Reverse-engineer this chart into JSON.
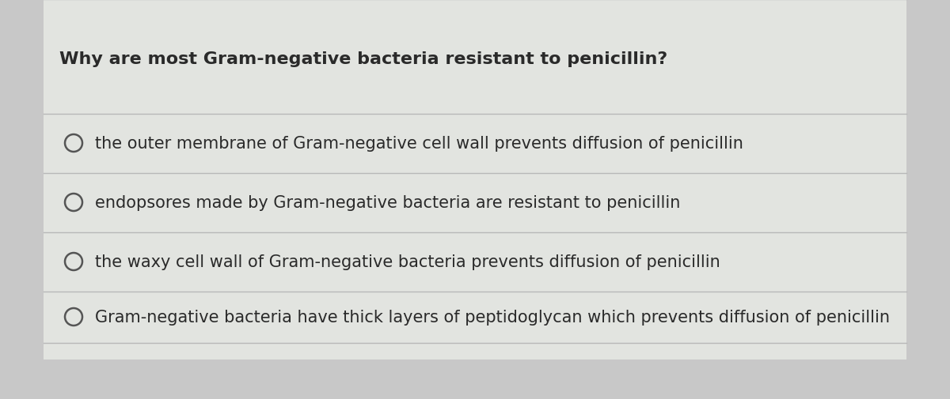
{
  "question": "Why are most Gram-negative bacteria resistant to penicillin?",
  "options": [
    "the outer membrane of Gram-negative cell wall prevents diffusion of penicillin",
    "endopsores made by Gram-negative bacteria are resistant to penicillin",
    "the waxy cell wall of Gram-negative bacteria prevents diffusion of penicillin",
    "Gram-negative bacteria have thick layers of peptidoglycan which prevents diffusion of penicillin"
  ],
  "bg_color": "#c8c8c8",
  "card_bg": "#dcdcdc",
  "card_inner_bg": "#e2e4e0",
  "line_color": "#b8b8b8",
  "text_color": "#2a2a2a",
  "circle_color": "#555555",
  "question_fontsize": 16,
  "option_fontsize": 15,
  "fig_width": 12.0,
  "fig_height": 5.06,
  "dpi": 100
}
